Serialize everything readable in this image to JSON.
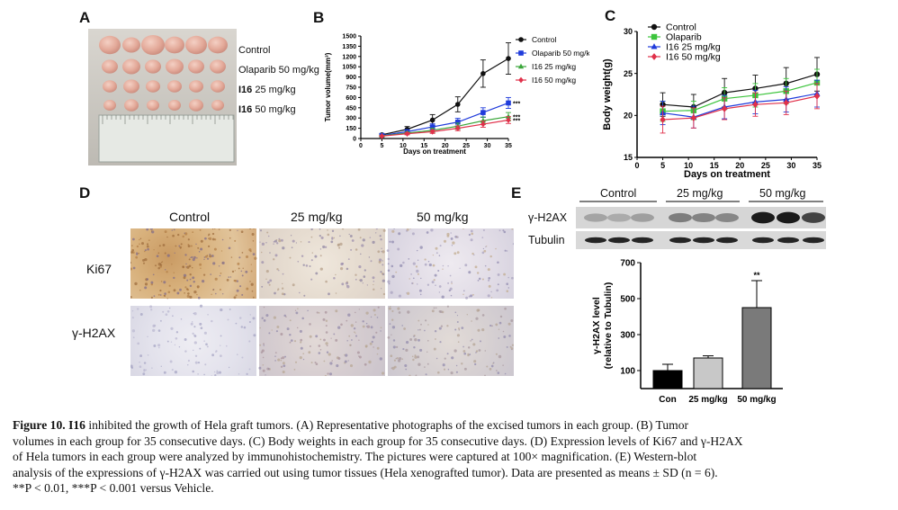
{
  "panels": {
    "a": "A",
    "b": "B",
    "c": "C",
    "d": "D",
    "e": "E"
  },
  "panel_a": {
    "rows": [
      "Control",
      "Olaparib 50 mg/kg",
      "I16",
      "25 mg/kg",
      "I16",
      "50 mg/kg"
    ]
  },
  "panel_d": {
    "columns": [
      "Control",
      "25 mg/kg",
      "50 mg/kg"
    ],
    "rows": [
      "Ki67",
      "γ-H2AX"
    ]
  },
  "panel_e": {
    "blot_groups": [
      "Control",
      "25 mg/kg",
      "50 mg/kg"
    ],
    "blot_rows": [
      "γ-H2AX",
      "Tubulin"
    ]
  },
  "chart_data": [
    {
      "type": "line",
      "panel": "B",
      "xlabel": "Days on treatment",
      "ylabel": "Tumor volume(mm³)",
      "x": [
        5,
        11,
        17,
        23,
        29,
        35
      ],
      "xlim": [
        0,
        35
      ],
      "ylim": [
        0,
        1500
      ],
      "xticks": [
        "0",
        "5",
        "10",
        "15",
        "20",
        "25",
        "30",
        "35"
      ],
      "yticks": [
        "0",
        "150",
        "300",
        "450",
        "600",
        "750",
        "900",
        "1050",
        "1200",
        "1350",
        "1500"
      ],
      "legend": "top-right",
      "series": [
        {
          "name": "Control",
          "color": "#111111",
          "marker": "circle",
          "values": [
            55,
            135,
            270,
            500,
            950,
            1170
          ],
          "err": [
            15,
            40,
            80,
            110,
            200,
            230
          ]
        },
        {
          "name": "Olaparib 50 mg/kg",
          "color": "#1f3bdb",
          "marker": "square",
          "values": [
            45,
            100,
            170,
            240,
            380,
            520
          ],
          "err": [
            10,
            25,
            45,
            55,
            70,
            80
          ],
          "sig": "***"
        },
        {
          "name": "I16 25 mg/kg",
          "color": "#3aa63a",
          "marker": "triangle",
          "values": [
            40,
            80,
            120,
            180,
            260,
            320
          ],
          "err": [
            8,
            20,
            30,
            45,
            55,
            60
          ],
          "sig": "***"
        },
        {
          "name": "I16 50 mg/kg",
          "color": "#e0304a",
          "marker": "diamond",
          "values": [
            35,
            70,
            100,
            150,
            210,
            270
          ],
          "err": [
            8,
            15,
            25,
            35,
            45,
            50
          ],
          "sig": "***"
        }
      ]
    },
    {
      "type": "line",
      "panel": "C",
      "xlabel": "Days on treatment",
      "ylabel": "Body weight(g)",
      "x": [
        5,
        11,
        17,
        23,
        29,
        35
      ],
      "xlim": [
        0,
        35
      ],
      "ylim": [
        15,
        30
      ],
      "xticks": [
        "0",
        "5",
        "10",
        "15",
        "20",
        "25",
        "30",
        "35"
      ],
      "yticks": [
        "15",
        "20",
        "25",
        "30"
      ],
      "legend": "top-left",
      "series": [
        {
          "name": "Control",
          "color": "#111111",
          "marker": "circle",
          "values": [
            21.3,
            21.0,
            22.7,
            23.2,
            23.8,
            24.9
          ],
          "err": [
            1.4,
            1.5,
            1.7,
            1.6,
            1.9,
            2.0
          ]
        },
        {
          "name": "Olaparib",
          "color": "#3cc43c",
          "marker": "square",
          "values": [
            20.5,
            20.6,
            22.0,
            22.4,
            22.9,
            23.9
          ],
          "err": [
            1.2,
            1.1,
            1.3,
            1.4,
            1.5,
            1.6
          ]
        },
        {
          "name": "I16 25 mg/kg",
          "color": "#1f3bdb",
          "marker": "triangle",
          "values": [
            20.3,
            19.8,
            21.0,
            21.6,
            21.9,
            22.6
          ],
          "err": [
            1.4,
            1.3,
            1.4,
            1.4,
            1.5,
            1.6
          ]
        },
        {
          "name": "I16 50 mg/kg",
          "color": "#e0304a",
          "marker": "diamond",
          "values": [
            19.5,
            19.7,
            20.8,
            21.3,
            21.5,
            22.3
          ],
          "err": [
            1.6,
            1.2,
            1.3,
            1.4,
            1.4,
            1.5
          ]
        }
      ]
    },
    {
      "type": "bar",
      "panel": "E",
      "ylabel": "γ-H2AX level",
      "ylabel2": "(relative to Tubulin)",
      "categories": [
        "Con",
        "25 mg/kg",
        "50 mg/kg"
      ],
      "values": [
        100,
        170,
        450
      ],
      "err": [
        35,
        12,
        150
      ],
      "colors": [
        "#000000",
        "#c8c8c8",
        "#7a7a7a"
      ],
      "ylim": [
        0,
        700
      ],
      "yticks": [
        "100",
        "300",
        "500",
        "700"
      ],
      "annotations": [
        {
          "category": "50 mg/kg",
          "text": "**"
        }
      ]
    }
  ],
  "caption": {
    "fig_label": "Figure 10.",
    "compound": "I16",
    "l1_rest": " inhibited the growth of Hela graft tumors. (A) Representative photographs of the excised tumors in each group. (B) Tumor",
    "l2": "volumes in each group for 35 consecutive days. (C) Body weights in each group for 35 consecutive days. (D) Expression levels of Ki67 and γ-H2AX",
    "l3": "of Hela tumors in each group were analyzed by immunohistochemistry. The pictures were captured at 100× magnification. (E) Western-blot",
    "l4": "analysis of the expressions of γ-H2AX was carried out using tumor tissues (Hela xenografted tumor). Data are presented as means ± SD (n = 6).",
    "l5": "**P < 0.01, ***P < 0.001 versus Vehicle."
  }
}
